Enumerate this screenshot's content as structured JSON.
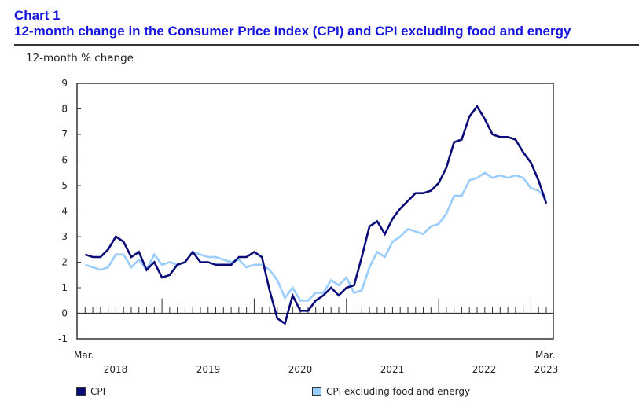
{
  "header": {
    "chart_number": "Chart 1",
    "title": "12-month change in the Consumer Price Index (CPI) and CPI excluding food and energy"
  },
  "chart_data": {
    "type": "line",
    "title": "12-month change in the Consumer Price Index (CPI) and CPI excluding food and energy",
    "ylabel": "12-month % change",
    "xlabel": "",
    "ylim": [
      -1,
      9
    ],
    "yticks": [
      "-1",
      "0",
      "1",
      "2",
      "3",
      "4",
      "5",
      "6",
      "7",
      "8",
      "9"
    ],
    "x_start": "Mar. 2018",
    "x_end": "Mar. 2023",
    "x_labels": {
      "start_month": "Mar.",
      "end_month": "Mar.",
      "years": [
        "2018",
        "2019",
        "2020",
        "2021",
        "2022",
        "2023"
      ]
    },
    "grid": false,
    "legend_position": "bottom",
    "x": [
      "2018-03",
      "2018-04",
      "2018-05",
      "2018-06",
      "2018-07",
      "2018-08",
      "2018-09",
      "2018-10",
      "2018-11",
      "2018-12",
      "2019-01",
      "2019-02",
      "2019-03",
      "2019-04",
      "2019-05",
      "2019-06",
      "2019-07",
      "2019-08",
      "2019-09",
      "2019-10",
      "2019-11",
      "2019-12",
      "2020-01",
      "2020-02",
      "2020-03",
      "2020-04",
      "2020-05",
      "2020-06",
      "2020-07",
      "2020-08",
      "2020-09",
      "2020-10",
      "2020-11",
      "2020-12",
      "2021-01",
      "2021-02",
      "2021-03",
      "2021-04",
      "2021-05",
      "2021-06",
      "2021-07",
      "2021-08",
      "2021-09",
      "2021-10",
      "2021-11",
      "2021-12",
      "2022-01",
      "2022-02",
      "2022-03",
      "2022-04",
      "2022-05",
      "2022-06",
      "2022-07",
      "2022-08",
      "2022-09",
      "2022-10",
      "2022-11",
      "2022-12",
      "2023-01",
      "2023-02",
      "2023-03"
    ],
    "series": [
      {
        "name": "CPI",
        "color": "#0a0a78",
        "values": [
          2.3,
          2.2,
          2.2,
          2.5,
          3.0,
          2.8,
          2.2,
          2.4,
          1.7,
          2.0,
          1.4,
          1.5,
          1.9,
          2.0,
          2.4,
          2.0,
          2.0,
          1.9,
          1.9,
          1.9,
          2.2,
          2.2,
          2.4,
          2.2,
          0.9,
          -0.2,
          -0.4,
          0.7,
          0.1,
          0.1,
          0.5,
          0.7,
          1.0,
          0.7,
          1.0,
          1.1,
          2.2,
          3.4,
          3.6,
          3.1,
          3.7,
          4.1,
          4.4,
          4.7,
          4.7,
          4.8,
          5.1,
          5.7,
          6.7,
          6.8,
          7.7,
          8.1,
          7.6,
          7.0,
          6.9,
          6.9,
          6.8,
          6.3,
          5.9,
          5.2,
          4.3
        ]
      },
      {
        "name": "CPI excluding food and energy",
        "color": "#99ccff",
        "values": [
          1.9,
          1.8,
          1.7,
          1.8,
          2.3,
          2.3,
          1.8,
          2.1,
          1.7,
          2.3,
          1.9,
          2.0,
          1.9,
          2.0,
          2.4,
          2.3,
          2.2,
          2.2,
          2.1,
          2.0,
          2.1,
          1.8,
          1.9,
          1.9,
          1.7,
          1.3,
          0.6,
          1.0,
          0.5,
          0.5,
          0.8,
          0.8,
          1.3,
          1.1,
          1.4,
          0.8,
          0.9,
          1.8,
          2.4,
          2.2,
          2.8,
          3.0,
          3.3,
          3.2,
          3.1,
          3.4,
          3.5,
          3.9,
          4.6,
          4.6,
          5.2,
          5.3,
          5.5,
          5.3,
          5.4,
          5.3,
          5.4,
          5.3,
          4.9,
          4.8,
          4.5
        ]
      }
    ]
  },
  "legend": {
    "items": [
      {
        "label": "CPI",
        "color": "#0a0a78"
      },
      {
        "label": "CPI excluding food and energy",
        "color": "#99ccff"
      }
    ]
  }
}
